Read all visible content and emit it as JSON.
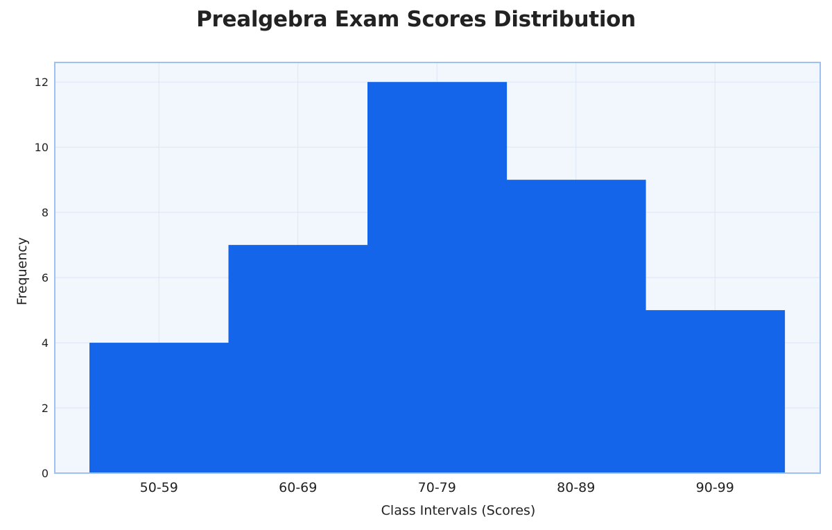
{
  "chart_data": {
    "type": "bar",
    "title": "Prealgebra Exam Scores Distribution",
    "xlabel": "Class Intervals (Scores)",
    "ylabel": "Frequency",
    "categories": [
      "50-59",
      "60-69",
      "70-79",
      "80-89",
      "90-99"
    ],
    "values": [
      4,
      7,
      12,
      9,
      5
    ],
    "ylim": [
      0,
      12.6
    ],
    "yticks": [
      0,
      2,
      4,
      6,
      8,
      10,
      12
    ],
    "grid": true,
    "colors": {
      "bar": "#1565ea",
      "plot_background": "#f2f6fd",
      "plot_border": "#9dbff2",
      "grid": "#dde6f5"
    }
  }
}
